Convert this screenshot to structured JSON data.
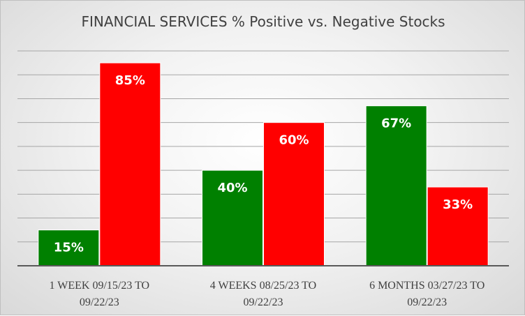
{
  "chart_data": {
    "type": "bar",
    "title": "FINANCIAL SERVICES % Positive vs. Negative Stocks",
    "xlabel": "",
    "ylabel": "",
    "categories": [
      [
        "1 WEEK 09/15/23 TO",
        "09/22/23"
      ],
      [
        "4 WEEKS 08/25/23 TO",
        "09/22/23"
      ],
      [
        "6 MONTHS 03/27/23 TO",
        "09/22/23"
      ]
    ],
    "series": [
      {
        "values": [
          15,
          40,
          67
        ],
        "labels": [
          "15%",
          "40%",
          "67%"
        ],
        "color": "#008000"
      },
      {
        "values": [
          85,
          60,
          33
        ],
        "labels": [
          "85%",
          "60%",
          "33%"
        ],
        "color": "#ff0000"
      }
    ],
    "ylim": [
      0,
      90
    ],
    "grid": true,
    "legend": "none"
  }
}
